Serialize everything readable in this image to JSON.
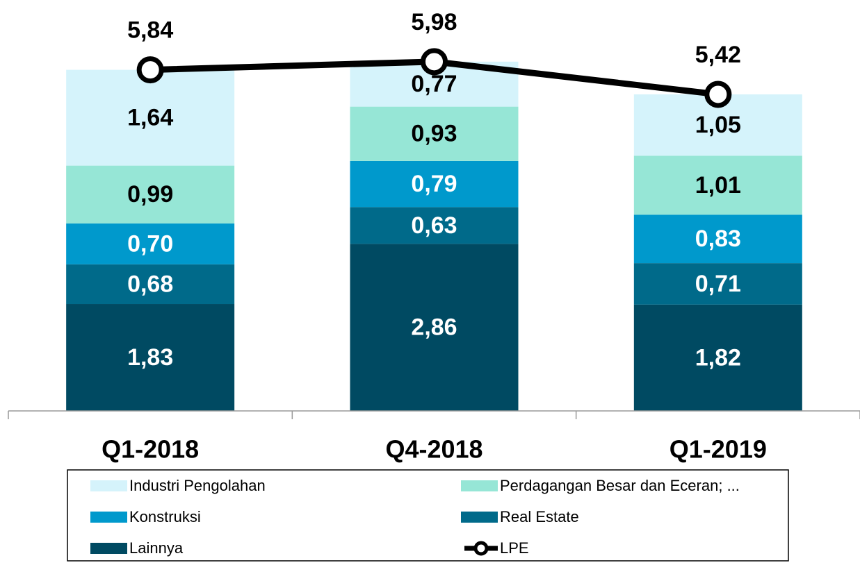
{
  "chart_data": {
    "type": "bar",
    "stacked": true,
    "categories": [
      "Q1-2018",
      "Q4-2018",
      "Q1-2019"
    ],
    "ylim": [
      0,
      7
    ],
    "series": [
      {
        "name": "Industri Pengolahan",
        "color": "#d5f3fb",
        "label_color": "#000000",
        "values": [
          1.64,
          0.77,
          1.05
        ],
        "value_labels": [
          "1,64",
          "0,77",
          "1,05"
        ]
      },
      {
        "name": "Perdagangan Besar dan Eceran; ...",
        "color": "#96e6d6",
        "label_color": "#000000",
        "values": [
          0.99,
          0.93,
          1.01
        ],
        "value_labels": [
          "0,99",
          "0,93",
          "1,01"
        ]
      },
      {
        "name": "Konstruksi",
        "color": "#0099cc",
        "label_color": "#ffffff",
        "values": [
          0.7,
          0.79,
          0.83
        ],
        "value_labels": [
          "0,70",
          "0,79",
          "0,83"
        ]
      },
      {
        "name": "Real Estate",
        "color": "#006a8a",
        "label_color": "#ffffff",
        "values": [
          0.68,
          0.63,
          0.71
        ],
        "value_labels": [
          "0,68",
          "0,63",
          "0,71"
        ]
      },
      {
        "name": "Lainnya",
        "color": "#004a62",
        "label_color": "#ffffff",
        "values": [
          1.83,
          2.86,
          1.82
        ],
        "value_labels": [
          "1,83",
          "2,86",
          "1,82"
        ]
      },
      {
        "name": "LPE",
        "type": "line",
        "color": "#000000",
        "label_color": "#000000",
        "values": [
          5.84,
          5.98,
          5.42
        ],
        "value_labels": [
          "5,84",
          "5,98",
          "5,42"
        ]
      }
    ]
  }
}
